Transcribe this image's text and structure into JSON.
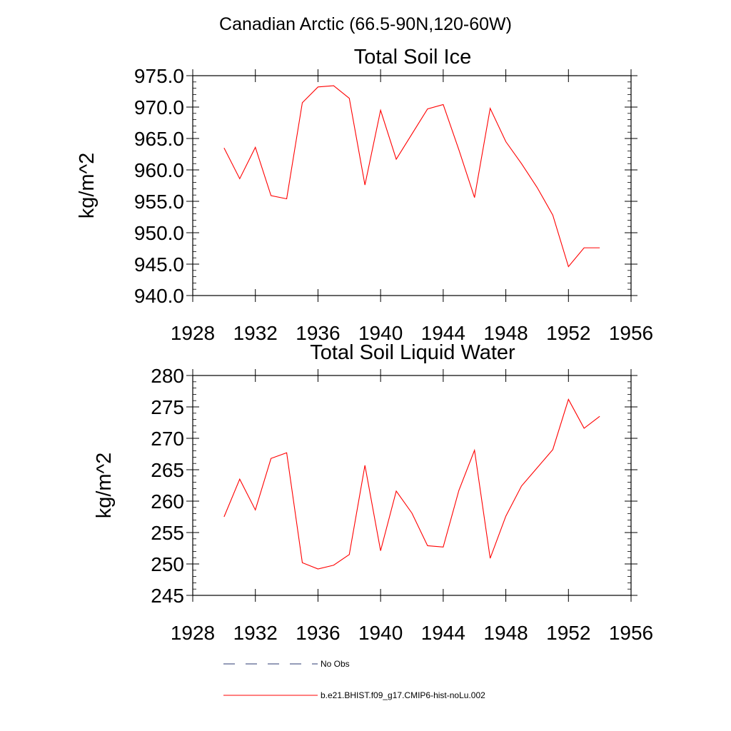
{
  "suptitle": "Canadian Arctic (66.5-90N,120-60W)",
  "legend": {
    "entries": [
      {
        "label": "No Obs",
        "color": "#2b3a70",
        "style": "dashed"
      },
      {
        "label": "b.e21.BHIST.f09_g17.CMIP6-hist-noLu.002",
        "color": "#ff0000",
        "style": "solid"
      }
    ]
  },
  "chart_data": [
    {
      "type": "line",
      "title": "Total Soil Ice",
      "ylabel": "kg/m^2",
      "xlabel": "",
      "xlim": [
        1928,
        1956
      ],
      "ylim": [
        940,
        975
      ],
      "xticks": [
        1928,
        1932,
        1936,
        1940,
        1944,
        1948,
        1952,
        1956
      ],
      "xtick_labels": [
        "1928",
        "1932",
        "1936",
        "1940",
        "1944",
        "1948",
        "1952",
        "1956"
      ],
      "yticks": [
        940,
        945,
        950,
        955,
        960,
        965,
        970,
        975
      ],
      "ytick_labels": [
        "940.0",
        "945.0",
        "950.0",
        "955.0",
        "960.0",
        "965.0",
        "970.0",
        "975.0"
      ],
      "grid": false,
      "series": [
        {
          "name": "b.e21.BHIST.f09_g17.CMIP6-hist-noLu.002",
          "color": "#ff0000",
          "x": [
            1930,
            1931,
            1932,
            1933,
            1934,
            1935,
            1936,
            1937,
            1938,
            1939,
            1940,
            1941,
            1942,
            1943,
            1944,
            1945,
            1946,
            1947,
            1948,
            1949,
            1950,
            1951,
            1952,
            1953,
            1954
          ],
          "y": [
            963.5,
            958.6,
            963.6,
            955.9,
            955.4,
            970.7,
            973.2,
            973.4,
            971.4,
            957.6,
            969.5,
            961.7,
            965.7,
            969.7,
            970.4,
            963.2,
            955.6,
            969.8,
            964.5,
            961.0,
            957.2,
            952.8,
            944.6,
            947.6,
            947.6
          ]
        }
      ]
    },
    {
      "type": "line",
      "title": "Total Soil Liquid Water",
      "ylabel": "kg/m^2",
      "xlabel": "",
      "xlim": [
        1928,
        1956
      ],
      "ylim": [
        245,
        280
      ],
      "xticks": [
        1928,
        1932,
        1936,
        1940,
        1944,
        1948,
        1952,
        1956
      ],
      "xtick_labels": [
        "1928",
        "1932",
        "1936",
        "1940",
        "1944",
        "1948",
        "1952",
        "1956"
      ],
      "yticks": [
        245,
        250,
        255,
        260,
        265,
        270,
        275,
        280
      ],
      "ytick_labels": [
        "245",
        "250",
        "255",
        "260",
        "265",
        "270",
        "275",
        "280"
      ],
      "grid": false,
      "series": [
        {
          "name": "b.e21.BHIST.f09_g17.CMIP6-hist-noLu.002",
          "color": "#ff0000",
          "x": [
            1930,
            1931,
            1932,
            1933,
            1934,
            1935,
            1936,
            1937,
            1938,
            1939,
            1940,
            1941,
            1942,
            1943,
            1944,
            1945,
            1946,
            1947,
            1948,
            1949,
            1950,
            1951,
            1952,
            1953,
            1954
          ],
          "y": [
            257.5,
            263.5,
            258.6,
            266.8,
            267.7,
            250.2,
            249.2,
            249.8,
            251.5,
            265.7,
            252.1,
            261.6,
            258.1,
            252.9,
            252.7,
            261.7,
            268.1,
            250.9,
            257.6,
            262.4,
            265.3,
            268.2,
            276.2,
            271.6,
            273.5
          ]
        }
      ]
    }
  ]
}
